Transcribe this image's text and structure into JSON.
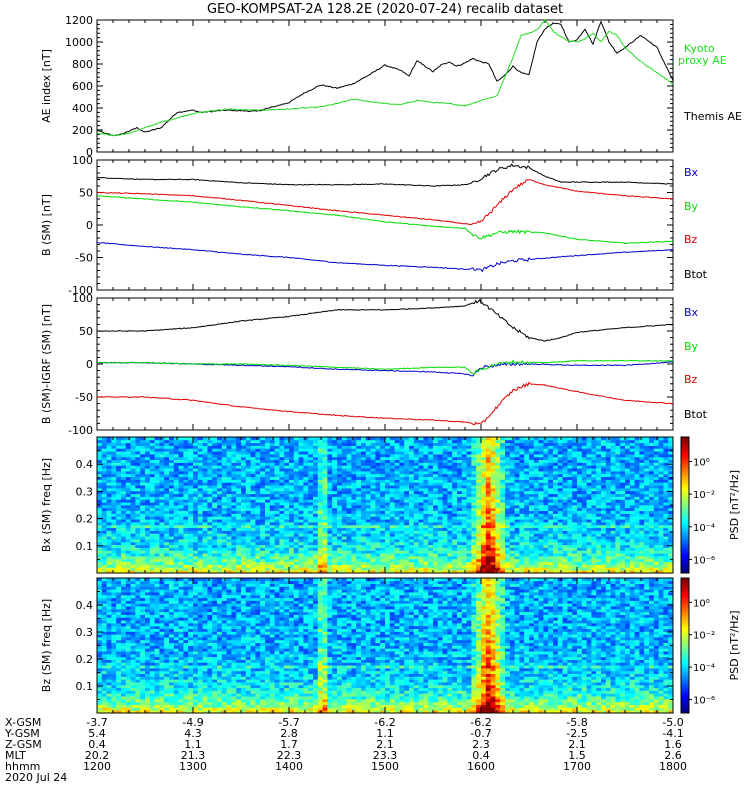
{
  "title": "GEO-KOMPSAT-2A 128.2E (2020-07-24) recalib dataset",
  "colors": {
    "black": "#000000",
    "red": "#dd0000",
    "green": "#00dd00",
    "blue": "#0000cc",
    "kyoto": "#22dd22"
  },
  "chart_data": [
    {
      "type": "line",
      "ylabel": "AE index [nT]",
      "ylim": [
        0,
        1200
      ],
      "yticks": [
        0,
        200,
        400,
        600,
        800,
        1000,
        1200
      ],
      "legend": [
        "Kyoto proxy AE",
        "Themis AE"
      ],
      "series": [
        {
          "name": "Themis AE",
          "color": "#000000",
          "x": [
            1200,
            1205,
            1210,
            1215,
            1220,
            1225,
            1230,
            1240,
            1250,
            1300,
            1305,
            1320,
            1340,
            1400,
            1410,
            1420,
            1430,
            1440,
            1450,
            1500,
            1510,
            1515,
            1520,
            1530,
            1535,
            1540,
            1545,
            1550,
            1555,
            1600,
            1605,
            1610,
            1615,
            1620,
            1625,
            1630,
            1635,
            1640,
            1645,
            1650,
            1655,
            1700,
            1705,
            1710,
            1715,
            1720,
            1725,
            1730,
            1740,
            1750,
            1800
          ],
          "values": [
            200,
            170,
            150,
            160,
            190,
            220,
            180,
            220,
            360,
            380,
            360,
            380,
            370,
            450,
            540,
            610,
            580,
            620,
            700,
            790,
            740,
            690,
            830,
            730,
            790,
            820,
            780,
            810,
            850,
            820,
            800,
            640,
            700,
            780,
            720,
            700,
            1000,
            1120,
            1170,
            1160,
            1000,
            1020,
            1120,
            980,
            1190,
            1000,
            900,
            950,
            1060,
            950,
            650
          ]
        },
        {
          "name": "Kyoto proxy AE",
          "color": "#22dd22",
          "x": [
            1200,
            1210,
            1220,
            1230,
            1240,
            1250,
            1300,
            1320,
            1340,
            1400,
            1410,
            1420,
            1430,
            1440,
            1450,
            1500,
            1510,
            1520,
            1530,
            1540,
            1550,
            1600,
            1610,
            1620,
            1625,
            1630,
            1635,
            1640,
            1645,
            1650,
            1655,
            1700,
            1705,
            1710,
            1715,
            1720,
            1725,
            1730,
            1740,
            1750,
            1800
          ],
          "values": [
            170,
            150,
            170,
            220,
            270,
            310,
            350,
            390,
            380,
            390,
            400,
            410,
            440,
            480,
            460,
            440,
            430,
            470,
            450,
            440,
            420,
            470,
            510,
            860,
            1060,
            1080,
            1110,
            1200,
            1100,
            1050,
            1010,
            1000,
            1030,
            1080,
            1000,
            1100,
            1060,
            950,
            820,
            720,
            620
          ]
        }
      ]
    },
    {
      "type": "line",
      "ylabel": "B (SM) [nT]",
      "ylim": [
        -100,
        100
      ],
      "yticks": [
        -100,
        -50,
        0,
        50,
        100
      ],
      "legend": [
        "Bx",
        "By",
        "Bz",
        "Btot"
      ],
      "series": [
        {
          "name": "Btot",
          "color": "#000000",
          "x": [
            1200,
            1230,
            1300,
            1330,
            1400,
            1430,
            1500,
            1530,
            1550,
            1555,
            1600,
            1610,
            1620,
            1630,
            1640,
            1650,
            1700,
            1730,
            1800
          ],
          "values": [
            73,
            70,
            70,
            65,
            62,
            62,
            63,
            60,
            62,
            65,
            72,
            85,
            92,
            88,
            75,
            66,
            66,
            66,
            63
          ]
        },
        {
          "name": "Bx",
          "color": "#0000cc",
          "x": [
            1200,
            1230,
            1300,
            1330,
            1400,
            1430,
            1500,
            1530,
            1550,
            1555,
            1600,
            1610,
            1620,
            1630,
            1700,
            1730,
            1800
          ],
          "values": [
            -27,
            -33,
            -38,
            -45,
            -50,
            -58,
            -62,
            -65,
            -68,
            -67,
            -70,
            -60,
            -55,
            -53,
            -47,
            -42,
            -38
          ]
        },
        {
          "name": "By",
          "color": "#00dd00",
          "x": [
            1200,
            1230,
            1300,
            1330,
            1400,
            1430,
            1500,
            1530,
            1550,
            1555,
            1600,
            1610,
            1620,
            1640,
            1700,
            1730,
            1800
          ],
          "values": [
            45,
            40,
            35,
            28,
            22,
            15,
            5,
            -2,
            -5,
            -15,
            -20,
            -12,
            -10,
            -12,
            -22,
            -28,
            -25
          ]
        },
        {
          "name": "Bz",
          "color": "#dd0000",
          "x": [
            1200,
            1230,
            1300,
            1330,
            1400,
            1430,
            1500,
            1530,
            1550,
            1555,
            1600,
            1610,
            1620,
            1630,
            1640,
            1700,
            1730,
            1800
          ],
          "values": [
            50,
            48,
            45,
            38,
            30,
            22,
            15,
            8,
            2,
            0,
            5,
            30,
            55,
            70,
            62,
            52,
            45,
            40
          ]
        }
      ]
    },
    {
      "type": "line",
      "ylabel": "B (SM)-IGRF (SM) [nT]",
      "ylim": [
        -100,
        100
      ],
      "yticks": [
        -100,
        -50,
        0,
        50,
        100
      ],
      "legend": [
        "Bx",
        "By",
        "Bz",
        "Btot"
      ],
      "series": [
        {
          "name": "Btot",
          "color": "#000000",
          "x": [
            1200,
            1230,
            1300,
            1330,
            1400,
            1430,
            1500,
            1530,
            1550,
            1555,
            1600,
            1610,
            1620,
            1630,
            1640,
            1650,
            1700,
            1730,
            1800
          ],
          "values": [
            50,
            50,
            55,
            65,
            72,
            82,
            82,
            85,
            88,
            93,
            95,
            75,
            55,
            40,
            35,
            40,
            48,
            55,
            60
          ]
        },
        {
          "name": "Bx",
          "color": "#0000cc",
          "x": [
            1200,
            1230,
            1300,
            1330,
            1400,
            1430,
            1500,
            1530,
            1550,
            1555,
            1600,
            1610,
            1620,
            1630,
            1700,
            1730,
            1800
          ],
          "values": [
            2,
            2,
            0,
            -2,
            -4,
            -8,
            -10,
            -12,
            -15,
            -18,
            -5,
            -2,
            0,
            0,
            -2,
            -2,
            3
          ]
        },
        {
          "name": "By",
          "color": "#00dd00",
          "x": [
            1200,
            1230,
            1300,
            1330,
            1400,
            1430,
            1500,
            1530,
            1550,
            1555,
            1600,
            1610,
            1620,
            1640,
            1700,
            1730,
            1800
          ],
          "values": [
            2,
            2,
            0,
            0,
            -2,
            -5,
            -8,
            -5,
            -5,
            -15,
            -8,
            0,
            3,
            2,
            5,
            5,
            5
          ]
        },
        {
          "name": "Bz",
          "color": "#dd0000",
          "x": [
            1200,
            1230,
            1300,
            1330,
            1400,
            1430,
            1500,
            1530,
            1550,
            1555,
            1600,
            1610,
            1620,
            1630,
            1640,
            1700,
            1730,
            1800
          ],
          "values": [
            -50,
            -50,
            -55,
            -65,
            -72,
            -78,
            -82,
            -85,
            -88,
            -90,
            -92,
            -65,
            -40,
            -30,
            -32,
            -42,
            -55,
            -60
          ]
        }
      ]
    },
    {
      "type": "heatmap",
      "ylabel": "Bx (SM) freq [Hz]",
      "yticks": [
        0.1,
        0.2,
        0.3,
        0.4
      ],
      "ylim": [
        0,
        0.5
      ],
      "colorbar_label": "PSD [nT²/Hz]",
      "colorbar_ticks": [
        "10⁰",
        "10⁻²",
        "10⁻⁴",
        "10⁻⁶"
      ]
    },
    {
      "type": "heatmap",
      "ylabel": "Bz (SM) freq [Hz]",
      "yticks": [
        0.1,
        0.2,
        0.3,
        0.4
      ],
      "ylim": [
        0,
        0.5
      ],
      "colorbar_label": "PSD [nT²/Hz]",
      "colorbar_ticks": [
        "10⁰",
        "10⁻²",
        "10⁻⁴",
        "10⁻⁶"
      ]
    }
  ],
  "ephemeris": {
    "labels": [
      "X-GSM",
      "Y-GSM",
      "Z-GSM",
      "MLT",
      "hhmm",
      "2020 Jul 24"
    ],
    "rows": [
      [
        "-3.7",
        "-4.9",
        "-5.7",
        "-6.2",
        "-6.2",
        "-5.8",
        "-5.0"
      ],
      [
        "5.4",
        "4.3",
        "2.8",
        "1.1",
        "-0.7",
        "-2.5",
        "-4.1"
      ],
      [
        "0.4",
        "1.1",
        "1.7",
        "2.1",
        "2.3",
        "2.1",
        "1.6"
      ],
      [
        "20.2",
        "21.3",
        "22.3",
        "23.3",
        "0.4",
        "1.5",
        "2.6"
      ],
      [
        "1200",
        "1300",
        "1400",
        "1500",
        "1600",
        "1700",
        "1800"
      ]
    ]
  }
}
